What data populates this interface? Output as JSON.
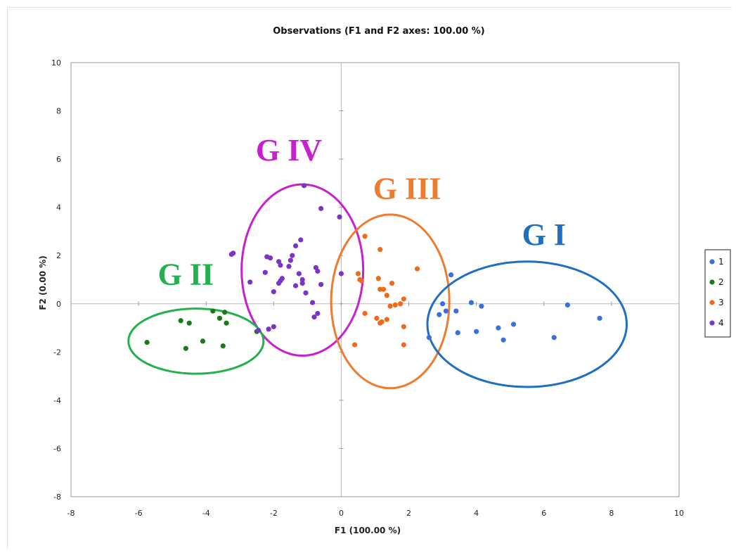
{
  "chart_data": {
    "type": "scatter",
    "title": "Observations (F1 and F2 axes: 100.00 %)",
    "xlabel": "F1 (100.00 %)",
    "ylabel": "F2 (0.00 %)",
    "xlim": [
      -8,
      10
    ],
    "ylim": [
      -8,
      10
    ],
    "x_ticks": [
      "-8",
      "-6",
      "-4",
      "-2",
      "0",
      "2",
      "4",
      "6",
      "8",
      "10"
    ],
    "y_ticks": [
      "-8",
      "-6",
      "-4",
      "-2",
      "0",
      "2",
      "4",
      "6",
      "8",
      "10"
    ],
    "legend_position": "right",
    "series": [
      {
        "name": "1",
        "color": "#3b6fe0",
        "points": [
          [
            3.25,
            1.2
          ],
          [
            3.85,
            0.05
          ],
          [
            4.15,
            -0.1
          ],
          [
            3.0,
            0.0
          ],
          [
            2.9,
            -0.45
          ],
          [
            3.1,
            -0.3
          ],
          [
            3.4,
            -0.3
          ],
          [
            2.6,
            -1.4
          ],
          [
            3.45,
            -1.2
          ],
          [
            4.0,
            -1.15
          ],
          [
            4.65,
            -1.0
          ],
          [
            4.8,
            -1.5
          ],
          [
            5.1,
            -0.85
          ],
          [
            6.3,
            -1.4
          ],
          [
            6.7,
            -0.05
          ],
          [
            7.65,
            -0.6
          ]
        ]
      },
      {
        "name": "2",
        "color": "#1a7a1a",
        "points": [
          [
            -5.75,
            -1.6
          ],
          [
            -4.75,
            -0.7
          ],
          [
            -4.5,
            -0.8
          ],
          [
            -4.6,
            -1.85
          ],
          [
            -4.1,
            -1.55
          ],
          [
            -3.8,
            -0.3
          ],
          [
            -3.6,
            -0.6
          ],
          [
            -3.45,
            -0.35
          ],
          [
            -3.4,
            -0.8
          ],
          [
            -3.5,
            -1.75
          ],
          [
            -2.5,
            -1.15
          ]
        ]
      },
      {
        "name": "3",
        "color": "#f06a1a",
        "points": [
          [
            0.7,
            2.8
          ],
          [
            1.15,
            2.25
          ],
          [
            2.25,
            1.45
          ],
          [
            0.5,
            1.25
          ],
          [
            0.55,
            1.0
          ],
          [
            0.6,
            0.95
          ],
          [
            1.1,
            1.05
          ],
          [
            1.5,
            0.85
          ],
          [
            1.15,
            0.6
          ],
          [
            1.35,
            0.35
          ],
          [
            1.25,
            0.6
          ],
          [
            1.85,
            0.2
          ],
          [
            1.75,
            0.0
          ],
          [
            1.6,
            -0.05
          ],
          [
            1.45,
            -0.1
          ],
          [
            0.7,
            -0.4
          ],
          [
            1.05,
            -0.6
          ],
          [
            1.35,
            -0.65
          ],
          [
            1.2,
            -0.75
          ],
          [
            1.15,
            -0.8
          ],
          [
            0.4,
            -1.7
          ],
          [
            1.85,
            -0.95
          ],
          [
            1.85,
            -1.7
          ]
        ]
      },
      {
        "name": "4",
        "color": "#7a35c8",
        "points": [
          [
            -1.1,
            4.9
          ],
          [
            -0.6,
            3.95
          ],
          [
            -0.05,
            3.6
          ],
          [
            -3.2,
            2.1
          ],
          [
            -3.25,
            2.05
          ],
          [
            -1.2,
            2.65
          ],
          [
            -1.35,
            2.4
          ],
          [
            -1.45,
            2.0
          ],
          [
            -1.5,
            1.8
          ],
          [
            -2.2,
            1.95
          ],
          [
            -2.1,
            1.9
          ],
          [
            -1.85,
            1.75
          ],
          [
            -1.8,
            1.6
          ],
          [
            -1.55,
            1.55
          ],
          [
            -1.25,
            1.25
          ],
          [
            -0.75,
            1.5
          ],
          [
            -0.7,
            1.35
          ],
          [
            -2.25,
            1.3
          ],
          [
            -1.75,
            1.05
          ],
          [
            -1.8,
            0.95
          ],
          [
            -1.85,
            0.85
          ],
          [
            -1.15,
            1.0
          ],
          [
            -2.7,
            0.9
          ],
          [
            -1.35,
            0.75
          ],
          [
            -1.15,
            0.85
          ],
          [
            -0.6,
            0.8
          ],
          [
            -2.0,
            0.5
          ],
          [
            -1.05,
            0.45
          ],
          [
            -0.85,
            0.05
          ],
          [
            -0.7,
            -0.4
          ],
          [
            -0.8,
            -0.55
          ],
          [
            -2.0,
            -0.95
          ],
          [
            -2.15,
            -1.05
          ],
          [
            -2.45,
            -1.1
          ],
          [
            0.0,
            1.25
          ]
        ]
      }
    ],
    "annotations": [
      {
        "text": "G I",
        "color": "#1e6fc2"
      },
      {
        "text": "G II",
        "color": "#22b14c"
      },
      {
        "text": "G III",
        "color": "#ee7b30"
      },
      {
        "text": "G IV",
        "color": "#c81fd0"
      }
    ]
  }
}
